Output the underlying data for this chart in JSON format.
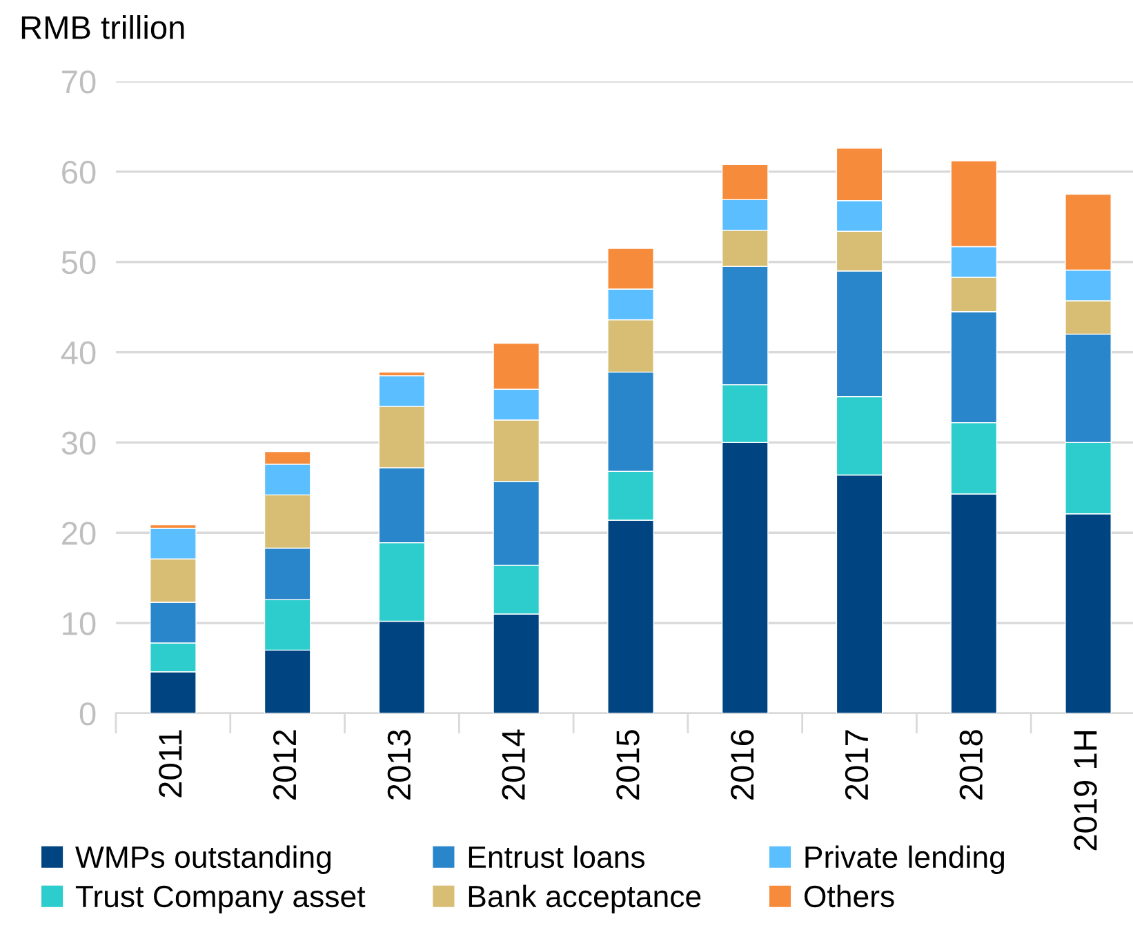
{
  "chart_data": {
    "type": "bar",
    "stacked": true,
    "ylabel": "RMB trillion",
    "categories": [
      "2011",
      "2012",
      "2013",
      "2014",
      "2015",
      "2016",
      "2017",
      "2018",
      "2019 1H"
    ],
    "series": [
      {
        "name": "WMPs outstanding",
        "color": "#004481",
        "values": [
          4.6,
          7.0,
          10.2,
          11.0,
          21.4,
          30.0,
          26.4,
          24.3,
          22.1
        ]
      },
      {
        "name": "Trust Company asset",
        "color": "#2dcccd",
        "values": [
          3.2,
          5.6,
          8.7,
          5.4,
          5.4,
          6.4,
          8.7,
          7.9,
          7.9
        ]
      },
      {
        "name": "Entrust loans",
        "color": "#2a86ca",
        "values": [
          4.5,
          5.7,
          8.3,
          9.3,
          11.0,
          13.1,
          13.9,
          12.3,
          12.0
        ]
      },
      {
        "name": "Bank acceptance",
        "color": "#d8be75",
        "values": [
          4.8,
          5.9,
          6.8,
          6.8,
          5.8,
          4.0,
          4.4,
          3.8,
          3.7
        ]
      },
      {
        "name": "Private lending",
        "color": "#5bbeff",
        "values": [
          3.4,
          3.4,
          3.4,
          3.4,
          3.4,
          3.4,
          3.4,
          3.4,
          3.4
        ]
      },
      {
        "name": "Others",
        "color": "#f78b3c",
        "values": [
          0.4,
          1.4,
          0.4,
          5.1,
          4.5,
          3.9,
          5.8,
          9.5,
          8.4
        ]
      }
    ],
    "ylim": [
      0,
      70
    ],
    "yticks": [
      0,
      10,
      20,
      30,
      40,
      50,
      60,
      70
    ],
    "grid": "y",
    "legend": "bottom"
  }
}
